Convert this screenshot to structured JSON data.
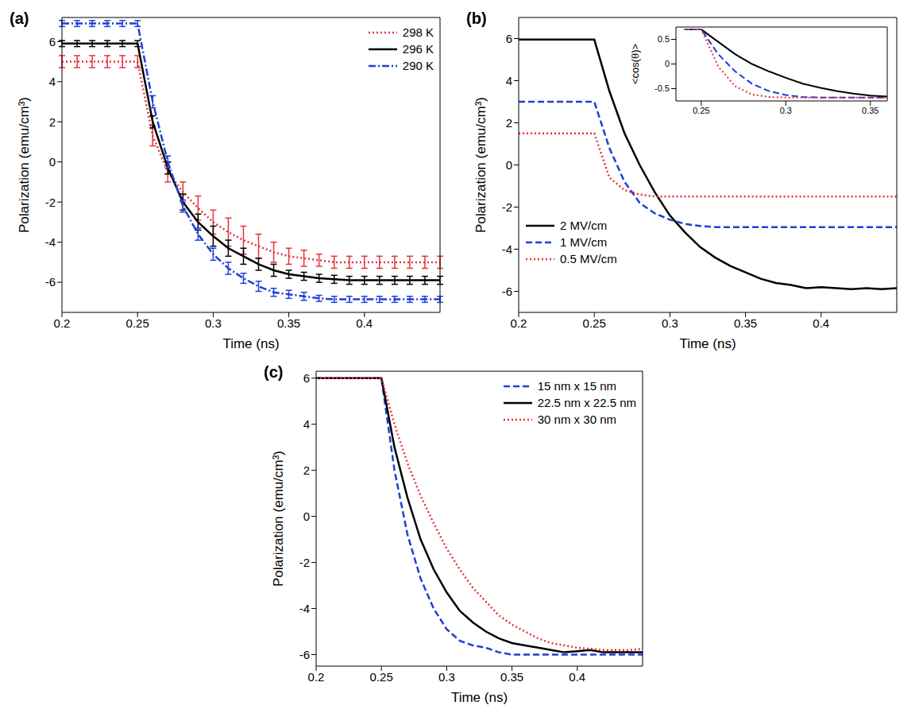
{
  "chart_data": [
    {
      "type": "line",
      "label": "(a)",
      "x_label": "Time (ns)",
      "y_label": "Polarization (emu/cm³)",
      "x": [
        0.2,
        0.21,
        0.22,
        0.23,
        0.24,
        0.25,
        0.26,
        0.27,
        0.28,
        0.29,
        0.3,
        0.31,
        0.32,
        0.33,
        0.34,
        0.35,
        0.36,
        0.37,
        0.38,
        0.39,
        0.4,
        0.41,
        0.42,
        0.43,
        0.44,
        0.45
      ],
      "xlim": [
        0.2,
        0.45
      ],
      "xticks": [
        0.2,
        0.25,
        0.3,
        0.35,
        0.4
      ],
      "ylim": [
        -7.5,
        7.2
      ],
      "yticks": [
        -6,
        -4,
        -2,
        0,
        2,
        4,
        6
      ],
      "grid": false,
      "legend": "upper right",
      "series": [
        {
          "name": "298 K",
          "color": "#e8303a",
          "line_style": "dotted",
          "values": [
            5,
            5,
            5,
            5,
            5,
            5,
            1.3,
            -0.5,
            -1.5,
            -2.3,
            -3.0,
            -3.5,
            -3.9,
            -4.2,
            -4.5,
            -4.7,
            -4.8,
            -4.9,
            -5,
            -5,
            -5,
            -5,
            -5,
            -5,
            -5,
            -5
          ],
          "errors": [
            0.3,
            0.3,
            0.3,
            0.3,
            0.3,
            0.3,
            0.5,
            0.5,
            0.5,
            0.6,
            0.6,
            0.7,
            0.7,
            0.6,
            0.5,
            0.4,
            0.4,
            0.3,
            0.3,
            0.3,
            0.3,
            0.3,
            0.3,
            0.3,
            0.3,
            0.3
          ]
        },
        {
          "name": "296 K",
          "color": "#000000",
          "line_style": "solid",
          "values": [
            5.9,
            5.9,
            5.9,
            5.9,
            5.9,
            5.9,
            2.0,
            -0.3,
            -2.0,
            -3.0,
            -3.7,
            -4.3,
            -4.7,
            -5.1,
            -5.4,
            -5.6,
            -5.7,
            -5.8,
            -5.85,
            -5.9,
            -5.9,
            -5.9,
            -5.9,
            -5.9,
            -5.9,
            -5.9
          ],
          "errors": [
            0.15,
            0.15,
            0.15,
            0.15,
            0.15,
            0.15,
            0.3,
            0.3,
            0.4,
            0.4,
            0.5,
            0.4,
            0.4,
            0.3,
            0.3,
            0.2,
            0.2,
            0.2,
            0.2,
            0.2,
            0.2,
            0.2,
            0.2,
            0.2,
            0.2,
            0.2
          ]
        },
        {
          "name": "290 K",
          "color": "#1f3fd6",
          "line_style": "dashdot",
          "values": [
            6.9,
            6.9,
            6.9,
            6.9,
            6.9,
            6.9,
            3.0,
            0.0,
            -2.2,
            -3.6,
            -4.6,
            -5.3,
            -5.8,
            -6.2,
            -6.5,
            -6.6,
            -6.7,
            -6.8,
            -6.85,
            -6.85,
            -6.85,
            -6.85,
            -6.85,
            -6.85,
            -6.85,
            -6.85
          ],
          "errors": [
            0.15,
            0.15,
            0.15,
            0.15,
            0.15,
            0.15,
            0.3,
            0.3,
            0.3,
            0.3,
            0.3,
            0.3,
            0.25,
            0.25,
            0.2,
            0.2,
            0.2,
            0.15,
            0.15,
            0.15,
            0.15,
            0.15,
            0.15,
            0.15,
            0.15,
            0.15
          ]
        }
      ]
    },
    {
      "type": "line",
      "label": "(b)",
      "x_label": "Time (ns)",
      "y_label": "Polarization (emu/cm³)",
      "x": [
        0.2,
        0.21,
        0.22,
        0.23,
        0.24,
        0.25,
        0.26,
        0.27,
        0.28,
        0.29,
        0.3,
        0.31,
        0.32,
        0.33,
        0.34,
        0.35,
        0.36,
        0.37,
        0.38,
        0.39,
        0.4,
        0.41,
        0.42,
        0.43,
        0.44,
        0.45
      ],
      "xlim": [
        0.2,
        0.45
      ],
      "xticks": [
        0.2,
        0.25,
        0.3,
        0.35,
        0.4
      ],
      "ylim": [
        -7,
        7
      ],
      "yticks": [
        -6,
        -4,
        -2,
        0,
        2,
        4,
        6
      ],
      "grid": false,
      "legend": "lower left",
      "series": [
        {
          "name": "2 MV/cm",
          "color": "#000000",
          "line_style": "solid",
          "values": [
            5.95,
            5.95,
            5.95,
            5.95,
            5.95,
            5.95,
            3.5,
            1.5,
            0,
            -1.3,
            -2.4,
            -3.2,
            -3.9,
            -4.4,
            -4.8,
            -5.1,
            -5.4,
            -5.6,
            -5.7,
            -5.85,
            -5.8,
            -5.85,
            -5.9,
            -5.85,
            -5.9,
            -5.85
          ]
        },
        {
          "name": "1 MV/cm",
          "color": "#1f3fd6",
          "line_style": "dashed",
          "values": [
            3,
            3,
            3,
            3,
            3,
            3,
            0.8,
            -0.8,
            -1.8,
            -2.3,
            -2.6,
            -2.8,
            -2.9,
            -2.95,
            -2.95,
            -2.95,
            -2.95,
            -2.95,
            -2.95,
            -2.95,
            -2.95,
            -2.95,
            -2.95,
            -2.95,
            -2.95,
            -2.95
          ]
        },
        {
          "name": "0.5 MV/cm",
          "color": "#e8303a",
          "line_style": "dotted",
          "values": [
            1.5,
            1.5,
            1.5,
            1.5,
            1.5,
            1.5,
            -0.6,
            -1.2,
            -1.4,
            -1.5,
            -1.5,
            -1.5,
            -1.5,
            -1.5,
            -1.5,
            -1.5,
            -1.5,
            -1.5,
            -1.5,
            -1.5,
            -1.5,
            -1.5,
            -1.5,
            -1.5,
            -1.5,
            -1.5
          ]
        }
      ],
      "inset": {
        "type": "line",
        "y_label": "<cos(θ)>",
        "x": [
          0.24,
          0.25,
          0.26,
          0.27,
          0.28,
          0.29,
          0.3,
          0.31,
          0.32,
          0.33,
          0.34,
          0.35,
          0.36
        ],
        "xlim": [
          0.235,
          0.36
        ],
        "xticks": [
          0.25,
          0.3,
          0.35
        ],
        "ylim": [
          -0.75,
          0.75
        ],
        "yticks": [
          -0.5,
          0,
          0.5
        ],
        "grid": false,
        "series": [
          {
            "color": "#000000",
            "line_style": "solid",
            "values": [
              0.7,
              0.7,
              0.45,
              0.2,
              0.0,
              -0.15,
              -0.28,
              -0.4,
              -0.48,
              -0.55,
              -0.6,
              -0.64,
              -0.66
            ]
          },
          {
            "color": "#1f3fd6",
            "line_style": "dashed",
            "values": [
              0.7,
              0.7,
              0.2,
              -0.15,
              -0.4,
              -0.55,
              -0.63,
              -0.67,
              -0.68,
              -0.68,
              -0.68,
              -0.68,
              -0.68
            ]
          },
          {
            "color": "#e8303a",
            "line_style": "dotted",
            "values": [
              0.7,
              0.7,
              -0.05,
              -0.45,
              -0.62,
              -0.67,
              -0.68,
              -0.68,
              -0.68,
              -0.68,
              -0.68,
              -0.68,
              -0.68
            ]
          }
        ]
      }
    },
    {
      "type": "line",
      "label": "(c)",
      "x_label": "Time (ns)",
      "y_label": "Polarization (emu/cm³)",
      "x": [
        0.2,
        0.21,
        0.22,
        0.23,
        0.24,
        0.25,
        0.26,
        0.27,
        0.28,
        0.29,
        0.3,
        0.31,
        0.32,
        0.33,
        0.34,
        0.35,
        0.36,
        0.37,
        0.38,
        0.39,
        0.4,
        0.41,
        0.42,
        0.43,
        0.44,
        0.45
      ],
      "xlim": [
        0.2,
        0.45
      ],
      "xticks": [
        0.2,
        0.25,
        0.3,
        0.35,
        0.4
      ],
      "ylim": [
        -6.5,
        6.3
      ],
      "yticks": [
        -6,
        -4,
        -2,
        0,
        2,
        4,
        6
      ],
      "grid": false,
      "legend": "upper right",
      "series": [
        {
          "name": "15 nm x 15 nm",
          "color": "#1f3fd6",
          "line_style": "dashed",
          "values": [
            6,
            6,
            6,
            6,
            6,
            6,
            2.0,
            -0.8,
            -2.7,
            -4.0,
            -4.9,
            -5.4,
            -5.6,
            -5.7,
            -5.9,
            -6.0,
            -6.0,
            -6.0,
            -6.0,
            -6.0,
            -6.0,
            -6.0,
            -6.0,
            -6.0,
            -6.0,
            -6.0
          ]
        },
        {
          "name": "22.5 nm x 22.5 nm",
          "color": "#000000",
          "line_style": "solid",
          "values": [
            6,
            6,
            6,
            6,
            6,
            6,
            3.0,
            0.8,
            -1.0,
            -2.3,
            -3.3,
            -4.1,
            -4.6,
            -5.0,
            -5.3,
            -5.5,
            -5.6,
            -5.7,
            -5.8,
            -5.9,
            -5.85,
            -5.8,
            -5.9,
            -5.9,
            -5.9,
            -5.9
          ]
        },
        {
          "name": "30 nm x 30 nm",
          "color": "#e8303a",
          "line_style": "dotted",
          "values": [
            6,
            6,
            6,
            6,
            6,
            6,
            4.0,
            2.3,
            0.9,
            -0.3,
            -1.4,
            -2.3,
            -3.1,
            -3.7,
            -4.3,
            -4.7,
            -5.0,
            -5.3,
            -5.5,
            -5.6,
            -5.7,
            -5.75,
            -5.8,
            -5.8,
            -5.8,
            -5.75
          ]
        }
      ]
    }
  ]
}
